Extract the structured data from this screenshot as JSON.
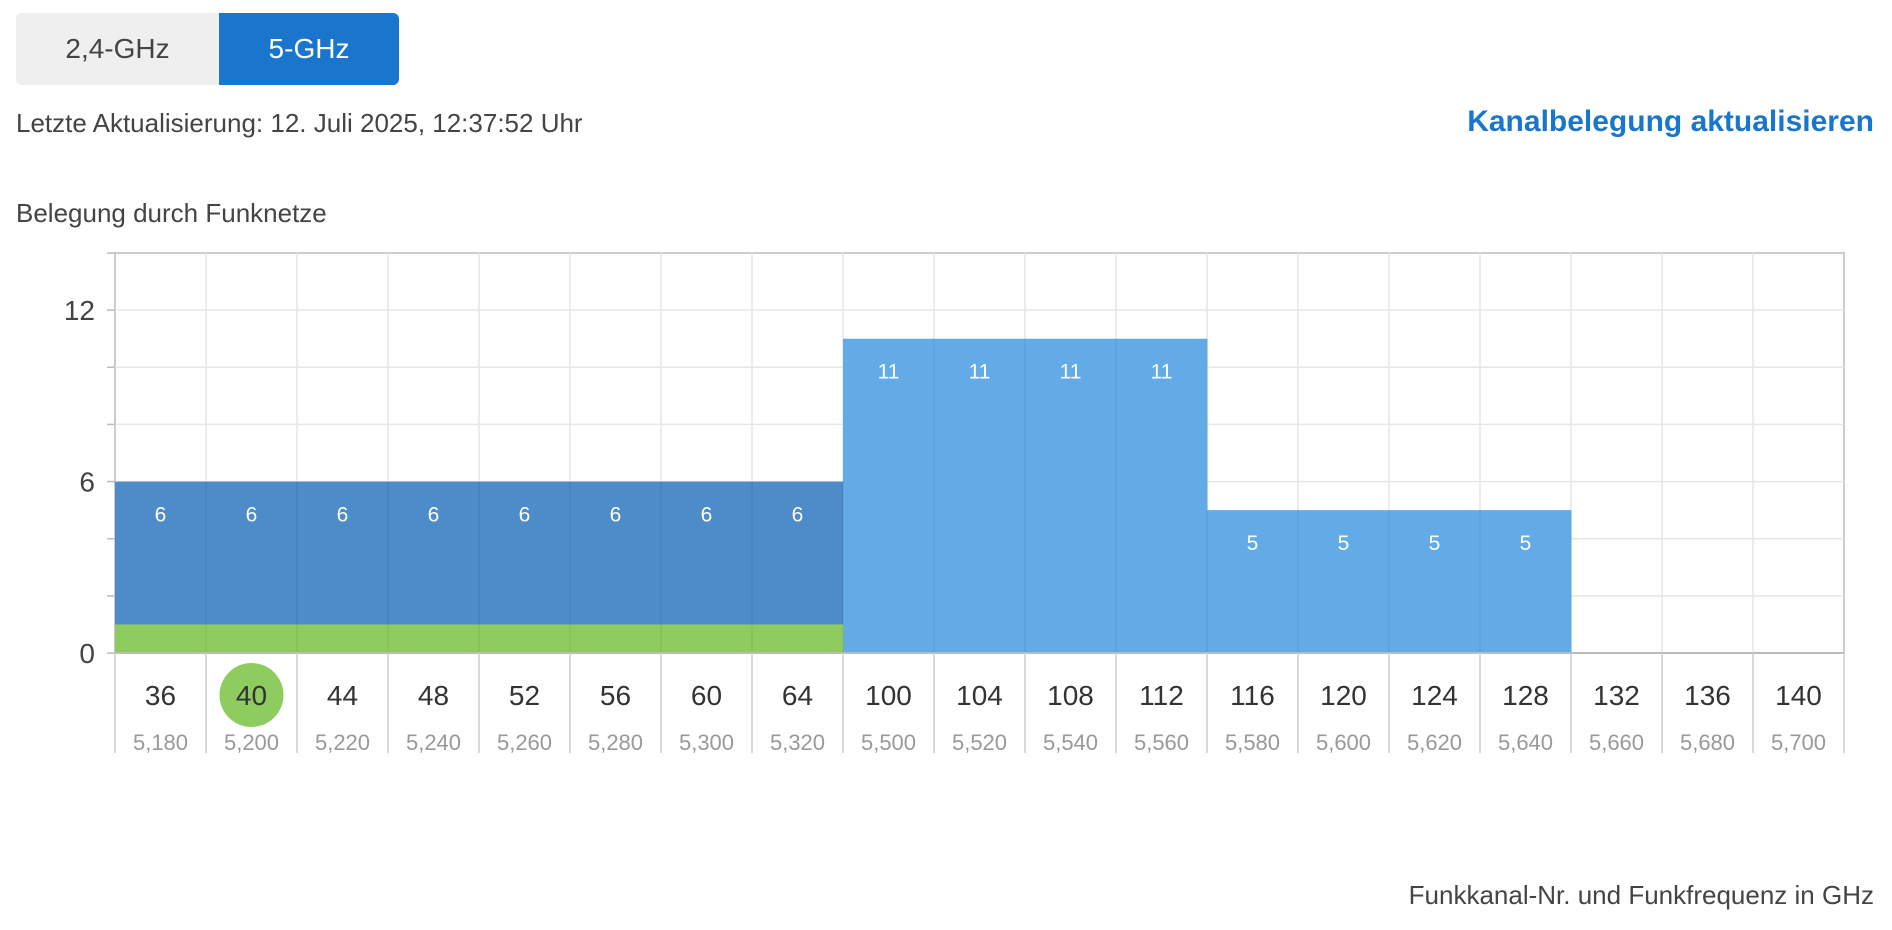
{
  "tabs": [
    {
      "label": "2,4-GHz",
      "active": false
    },
    {
      "label": "5-GHz",
      "active": true
    }
  ],
  "last_update": "Letzte Aktualisierung: 12. Juli 2025, 12:37:52 Uhr",
  "refresh_label": "Kanalbelegung aktualisieren",
  "chart_heading": "Belegung durch Funknetze",
  "x_caption": "Funkkanal-Nr. und Funkfrequenz in GHz",
  "colors": {
    "tab_active": "#1a76cc",
    "link": "#1a76cc",
    "bar_dark": "#4d8bc9",
    "bar_light": "#63abe6",
    "own_network": "#8fcc5f",
    "selected_channel": "#8fcc5f"
  },
  "chart_data": {
    "type": "bar",
    "title": "",
    "xlabel": "Funkkanal-Nr. und Funkfrequenz in GHz",
    "ylabel": "",
    "ylim": [
      0,
      14
    ],
    "yticks": [
      0,
      6,
      12
    ],
    "grid": true,
    "categories": [
      "36",
      "40",
      "44",
      "48",
      "52",
      "56",
      "60",
      "64",
      "100",
      "104",
      "108",
      "112",
      "116",
      "120",
      "124",
      "128",
      "132",
      "136",
      "140"
    ],
    "frequencies": [
      "5,180",
      "5,200",
      "5,220",
      "5,240",
      "5,260",
      "5,280",
      "5,300",
      "5,320",
      "5,500",
      "5,520",
      "5,540",
      "5,560",
      "5,580",
      "5,600",
      "5,620",
      "5,640",
      "5,660",
      "5,680",
      "5,700"
    ],
    "selected_channel": "40",
    "series": [
      {
        "values": [
          6,
          6,
          6,
          6,
          6,
          6,
          6,
          6,
          11,
          11,
          11,
          11,
          5,
          5,
          5,
          5,
          0,
          0,
          0
        ]
      },
      {
        "values": [
          1,
          1,
          1,
          1,
          1,
          1,
          1,
          1,
          0,
          0,
          0,
          0,
          0,
          0,
          0,
          0,
          0,
          0,
          0
        ]
      }
    ],
    "data_labels": [
      "6",
      "6",
      "6",
      "6",
      "6",
      "6",
      "6",
      "6",
      "11",
      "11",
      "11",
      "11",
      "5",
      "5",
      "5",
      "5",
      "",
      "",
      ""
    ]
  }
}
